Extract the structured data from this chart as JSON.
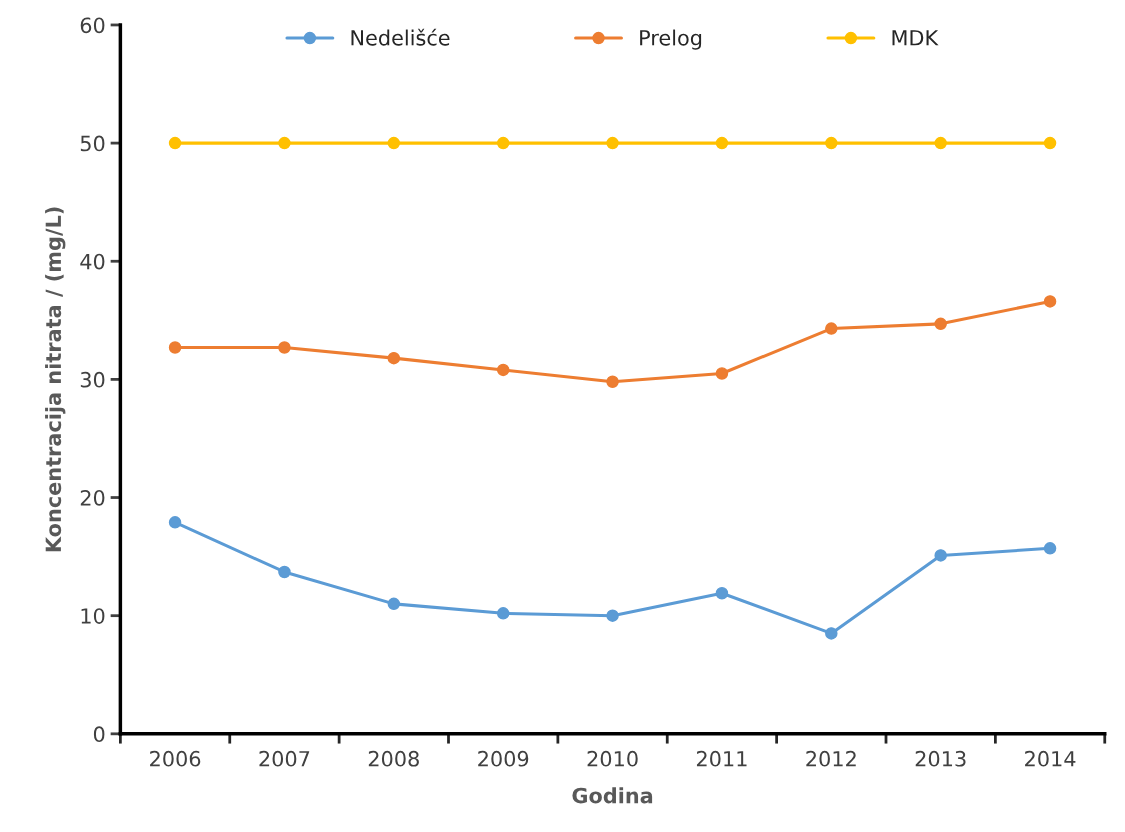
{
  "chart_data": {
    "type": "line",
    "xlabel": "Godina",
    "ylabel": "Koncentracija nitrata / (mg/L)",
    "categories": [
      "2006",
      "2007",
      "2008",
      "2009",
      "2010",
      "2011",
      "2012",
      "2013",
      "2014"
    ],
    "series": [
      {
        "name": "Nedelišće",
        "color": "#5b9bd5",
        "values": [
          17.9,
          13.7,
          11.0,
          10.2,
          10.0,
          11.9,
          8.5,
          15.1,
          15.7
        ]
      },
      {
        "name": "Prelog",
        "color": "#ed7d31",
        "values": [
          32.7,
          32.7,
          31.8,
          30.8,
          29.8,
          30.5,
          34.3,
          34.7,
          36.6
        ]
      },
      {
        "name": "MDK",
        "color": "#ffc000",
        "values": [
          50,
          50,
          50,
          50,
          50,
          50,
          50,
          50,
          50
        ]
      }
    ],
    "ylim": [
      0,
      60
    ],
    "yticks": [
      0,
      10,
      20,
      30,
      40,
      50,
      60
    ],
    "grid": false,
    "legend": "top",
    "marker": "circle",
    "line_style": "solid"
  }
}
